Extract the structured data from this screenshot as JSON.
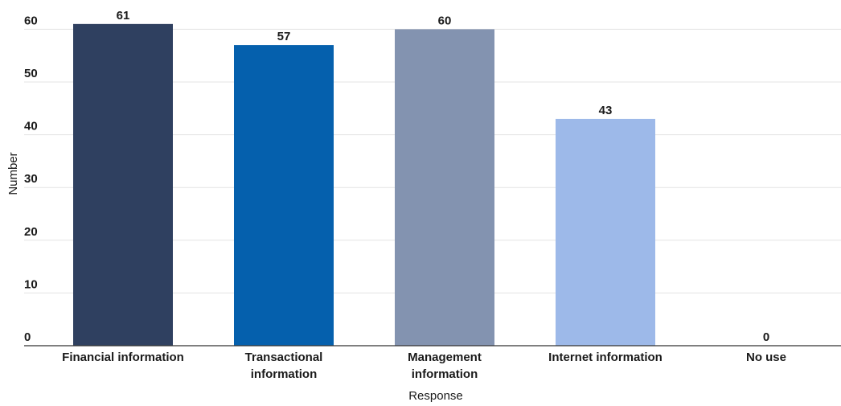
{
  "chart_data": {
    "type": "bar",
    "categories": [
      [
        "Financial information"
      ],
      [
        "Transactional",
        "information"
      ],
      [
        "Management",
        "information"
      ],
      [
        "Internet information"
      ],
      [
        "No use"
      ]
    ],
    "values": [
      61,
      57,
      60,
      43,
      0
    ],
    "xlabel": "Response",
    "ylabel": "Number",
    "ylim": [
      0,
      65
    ],
    "yticks": [
      0,
      10,
      20,
      30,
      40,
      50,
      60
    ],
    "grid": true,
    "colors": [
      "#2f4060",
      "#0560ad",
      "#8393b0",
      "#9db9e9",
      "#9db9e9"
    ]
  }
}
